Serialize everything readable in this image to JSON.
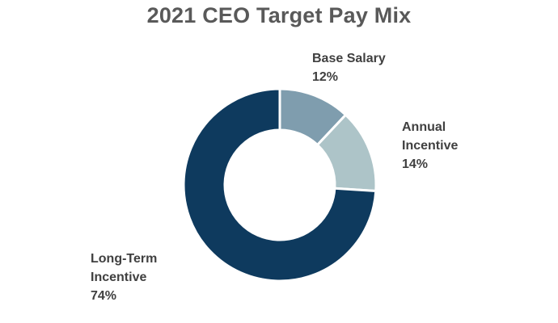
{
  "title": "2021 CEO Target Pay Mix",
  "labels": {
    "base": {
      "line1": "Base Salary",
      "pct": "12%"
    },
    "annual": {
      "line1": "Annual",
      "line2": "Incentive",
      "pct": "14%"
    },
    "lti": {
      "line1": "Long-Term",
      "line2": "Incentive",
      "pct": "74%"
    }
  },
  "colors": {
    "base_salary": "#7f9dae",
    "annual_incentive": "#adc4c8",
    "long_term_incentive": "#0e3a5e",
    "title": "#595959",
    "label": "#404040"
  },
  "chart_data": {
    "type": "pie",
    "subtype": "donut",
    "title": "2021 CEO Target Pay Mix",
    "categories": [
      "Base Salary",
      "Annual Incentive",
      "Long-Term Incentive"
    ],
    "values": [
      12,
      14,
      74
    ],
    "unit": "%",
    "colors": [
      "#7f9dae",
      "#adc4c8",
      "#0e3a5e"
    ],
    "start_angle": "12 o'clock, clockwise",
    "legend": "none (direct data labels)"
  }
}
